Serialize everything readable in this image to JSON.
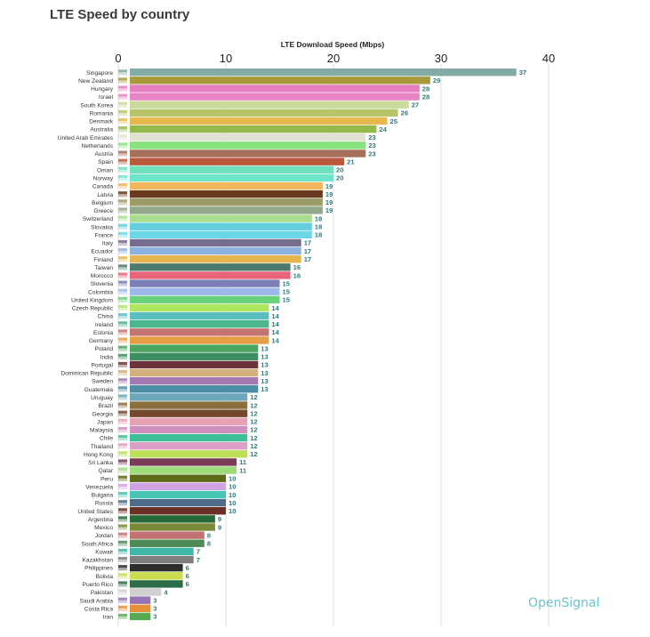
{
  "page": {
    "title": "LTE Speed by country",
    "brand": "OpenSignal"
  },
  "chart_data": {
    "type": "bar",
    "orientation": "horizontal",
    "title": "LTE Speed by country",
    "xlabel": "LTE Download Speed (Mbps)",
    "ylabel": "",
    "xlim": [
      0,
      40
    ],
    "xticks": [
      0,
      10,
      20,
      30,
      40
    ],
    "grid": true,
    "categories": [
      "Singapore",
      "New Zealand",
      "Hungary",
      "Israel",
      "South Korea",
      "Romania",
      "Denmark",
      "Australia",
      "United Arab Emirates",
      "Netherlands",
      "Austria",
      "Spain",
      "Oman",
      "Norway",
      "Canada",
      "Latvia",
      "Belgium",
      "Greece",
      "Switzerland",
      "Slovakia",
      "France",
      "Italy",
      "Ecuador",
      "Finland",
      "Taiwan",
      "Morocco",
      "Slovenia",
      "Colombia",
      "United Kingdom",
      "Czech Republic",
      "China",
      "Ireland",
      "Estonia",
      "Germany",
      "Poland",
      "India",
      "Portugal",
      "Dominican Republic",
      "Sweden",
      "Guatemala",
      "Uruguay",
      "Brazil",
      "Georgia",
      "Japan",
      "Malaysia",
      "Chile",
      "Thailand",
      "Hong Kong",
      "Sri Lanka",
      "Qatar",
      "Peru",
      "Venezuela",
      "Bulgaria",
      "Russia",
      "United States",
      "Argentina",
      "Mexico",
      "Jordan",
      "South Africa",
      "Kuwait",
      "Kazakhstan",
      "Philippines",
      "Bolivia",
      "Puerto Rico",
      "Pakistan",
      "Saudi Arabia",
      "Costa Rica",
      "Iran"
    ],
    "values": [
      37,
      29,
      28,
      28,
      27,
      26,
      25,
      24,
      23,
      23,
      23,
      21,
      20,
      20,
      19,
      19,
      19,
      19,
      18,
      18,
      18,
      17,
      17,
      17,
      16,
      16,
      15,
      15,
      15,
      14,
      14,
      14,
      14,
      14,
      13,
      13,
      13,
      13,
      13,
      13,
      12,
      12,
      12,
      12,
      12,
      12,
      12,
      12,
      11,
      11,
      10,
      10,
      10,
      10,
      10,
      9,
      9,
      8,
      8,
      7,
      7,
      6,
      6,
      6,
      4,
      3,
      3,
      3
    ],
    "value_labels": [
      "37",
      "29",
      "28",
      "28",
      "27",
      "26",
      "25",
      "24",
      "23",
      "23",
      "23",
      "21",
      "20",
      "20",
      "19",
      "19",
      "19",
      "19",
      "18",
      "18",
      "18",
      "17",
      "17",
      "17",
      "16",
      "16",
      "15",
      "15",
      "15",
      "14",
      "14",
      "14",
      "14",
      "14",
      "13",
      "13",
      "13",
      "13",
      "13",
      "13",
      "12",
      "12",
      "12",
      "12",
      "12",
      "12",
      "12",
      "12",
      "11",
      "11",
      "10",
      "10",
      "10",
      "10",
      "10",
      "9",
      "9",
      "8",
      "8",
      "7",
      "7",
      "6",
      "6",
      "6",
      "4",
      "3",
      "3",
      "3"
    ],
    "bar_colors": [
      "#82aba3",
      "#a89a3a",
      "#e57fbf",
      "#e884c4",
      "#c9dc9a",
      "#b7c46a",
      "#e6b84e",
      "#92b94a",
      "#e2e2d2",
      "#88e27e",
      "#a56f5a",
      "#b9583a",
      "#6ee0bc",
      "#6ee6cc",
      "#f2b65e",
      "#6a3a1e",
      "#9c9c66",
      "#92a88a",
      "#a8de8e",
      "#62cede",
      "#6ad6e6",
      "#776c8e",
      "#8eb2e0",
      "#e8b44e",
      "#4c7a6e",
      "#e96478",
      "#7e7eb6",
      "#9eb8ea",
      "#6ad27a",
      "#aee660",
      "#58bebe",
      "#4cb68e",
      "#c47470",
      "#e69e46",
      "#4aa65e",
      "#3c8e60",
      "#6a3438",
      "#d4b07e",
      "#a47ab2",
      "#4c8ea6",
      "#6ea6ba",
      "#8a6e3c",
      "#74462c",
      "#e6a2b2",
      "#d08ebe",
      "#3ebe96",
      "#dca0c6",
      "#bce05a",
      "#7a3a58",
      "#9edc7a",
      "#5c6a18",
      "#d2a2e6",
      "#48c6b4",
      "#4e6c8a",
      "#6a3026",
      "#266a36",
      "#7a8a36",
      "#c27272",
      "#4e8a56",
      "#40b6a6",
      "#7e7e7e",
      "#2c2c2c",
      "#cbdc4e",
      "#2c6c46",
      "#d0d0d0",
      "#9474b6",
      "#e6903a",
      "#58aa52"
    ],
    "value_label_color": "#2e7c7e"
  }
}
